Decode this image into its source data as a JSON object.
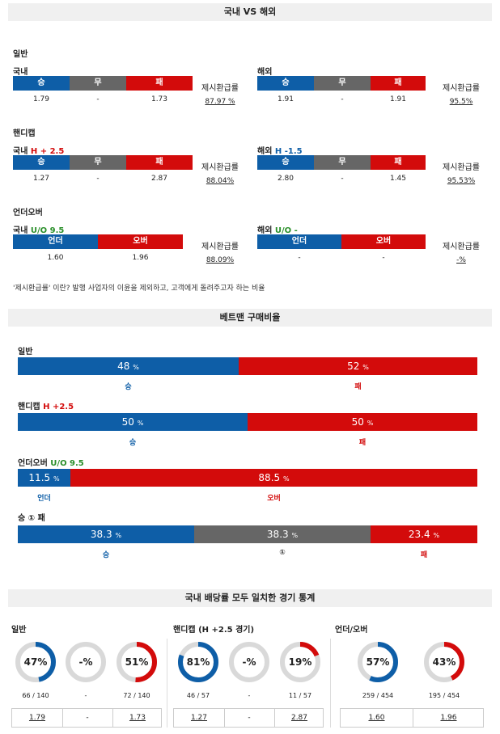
{
  "header1": "국내 VS 해외",
  "header2": "베트맨 구매비율",
  "header3": "국내 배당률 모두 일치한 경기 통계",
  "refund_label": "제시환급률",
  "note": "'제시환급률' 이란? 발행 사업자의 이윤을 제외하고, 고객에게 돌려주고자 하는 비율",
  "general": {
    "title": "일반",
    "domestic": {
      "label": "국내",
      "h_win": "승",
      "h_draw": "무",
      "h_lose": "패",
      "win": "1.79",
      "draw": "-",
      "lose": "1.73",
      "refund": "87.97 %"
    },
    "foreign": {
      "label": "해외",
      "h_win": "승",
      "h_draw": "무",
      "h_lose": "패",
      "win": "1.91",
      "draw": "-",
      "lose": "1.91",
      "refund": "95.5%"
    }
  },
  "handicap": {
    "title": "핸디캡",
    "domestic": {
      "label": "국내",
      "line": "H + 2.5",
      "h_win": "승",
      "h_draw": "무",
      "h_lose": "패",
      "win": "1.27",
      "draw": "-",
      "lose": "2.87",
      "refund": "88.04%"
    },
    "foreign": {
      "label": "해외",
      "line": "H -1.5",
      "h_win": "승",
      "h_draw": "무",
      "h_lose": "패",
      "win": "2.80",
      "draw": "-",
      "lose": "1.45",
      "refund": "95.53%"
    }
  },
  "underover": {
    "title": "언더오버",
    "domestic": {
      "label": "국내",
      "line": "U/O 9.5",
      "h_under": "언더",
      "h_over": "오버",
      "under": "1.60",
      "over": "1.96",
      "refund": "88.09%"
    },
    "foreign": {
      "label": "해외",
      "line": "U/O -",
      "h_under": "언더",
      "h_over": "오버",
      "under": "-",
      "over": "-",
      "refund": "-%"
    }
  },
  "betman": {
    "general": {
      "title": "일반",
      "a_val": "48",
      "b_val": "52",
      "a_pct": 48,
      "a_label": "승",
      "b_label": "패",
      "unit": "%"
    },
    "handicap": {
      "title": "핸디캡",
      "line": "H +2.5",
      "a_val": "50",
      "b_val": "50",
      "a_pct": 50,
      "a_label": "승",
      "b_label": "패",
      "unit": "%"
    },
    "underover": {
      "title": "언더오버",
      "line": "U/O 9.5",
      "a_val": "11.5",
      "b_val": "88.5",
      "a_pct": 11.5,
      "a_label": "언더",
      "b_label": "오버",
      "unit": "%"
    },
    "wdl": {
      "title": "승 ① 패",
      "a_val": "38.3",
      "b_val": "38.3",
      "c_val": "23.4",
      "a_pct": 38.3,
      "b_pct": 38.3,
      "a_label": "승",
      "b_label": "①",
      "c_label": "패",
      "unit": "%"
    }
  },
  "stats": {
    "general": {
      "title": "일반",
      "d1": {
        "text": "47%",
        "pct": 47,
        "color": "#0e5ea7",
        "count": "66 / 140"
      },
      "d2": {
        "text": "-%",
        "pct": 0,
        "color": "#666666",
        "count": "-"
      },
      "d3": {
        "text": "51%",
        "pct": 51,
        "color": "#d30b0b",
        "count": "72 / 140"
      },
      "s1": "1.79",
      "s2": "-",
      "s3": "1.73"
    },
    "handicap": {
      "title": "핸디캡 (H +2.5 경기)",
      "d1": {
        "text": "81%",
        "pct": 81,
        "color": "#0e5ea7",
        "count": "46 / 57"
      },
      "d2": {
        "text": "-%",
        "pct": 0,
        "color": "#666666",
        "count": "-"
      },
      "d3": {
        "text": "19%",
        "pct": 19,
        "color": "#d30b0b",
        "count": "11 / 57"
      },
      "s1": "1.27",
      "s2": "-",
      "s3": "2.87"
    },
    "underover": {
      "title": "언더/오버",
      "d1": {
        "text": "57%",
        "pct": 57,
        "color": "#0e5ea7",
        "count": "259 / 454"
      },
      "d2": {
        "text": "43%",
        "pct": 43,
        "color": "#d30b0b",
        "count": "195 / 454"
      },
      "s1": "1.60",
      "s2": "1.96"
    }
  }
}
